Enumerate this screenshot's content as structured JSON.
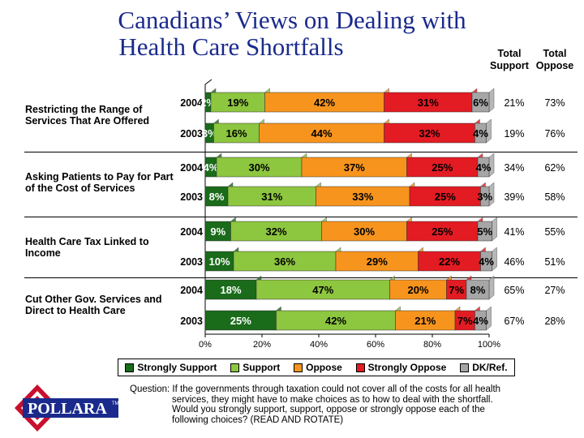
{
  "page": {
    "title_line1": "Canadians’ Views on Dealing with",
    "title_line2": "Health Care Shortfalls",
    "total_support_label_1": "Total",
    "total_support_label_2": "Support",
    "total_oppose_label_1": "Total",
    "total_oppose_label_2": "Oppose",
    "question_lead": "Question: If the governments through taxation could not cover all of the costs for all health",
    "question_rest": "services, they might have to make choices as to how to deal with the shortfall. Would you strongly support, support, oppose or strongly oppose each of the following choices? (READ AND ROTATE)",
    "logo_text": "POLLARA",
    "logo_tm": "TM"
  },
  "chart_data": {
    "type": "bar",
    "orientation": "horizontal",
    "stacked": true,
    "xlim": [
      0,
      100
    ],
    "xticks": [
      "0%",
      "20%",
      "40%",
      "60%",
      "80%",
      "100%"
    ],
    "legend_position": "bottom",
    "segments": [
      {
        "name": "Strongly Support",
        "color": "#1a6b1a"
      },
      {
        "name": "Support",
        "color": "#8dc63f"
      },
      {
        "name": "Oppose",
        "color": "#f7941d"
      },
      {
        "name": "Strongly Oppose",
        "color": "#e31b23"
      },
      {
        "name": "DK/Ref.",
        "color": "#a6a6a6"
      }
    ],
    "groups": [
      {
        "label": "Restricting the Range of Services That Are Offered",
        "rows": [
          {
            "year": "2004",
            "values": [
              2,
              19,
              42,
              31,
              6
            ],
            "labels": [
              "2%",
              "19%",
              "42%",
              "31%",
              "6%"
            ],
            "total_support": "21%",
            "total_oppose": "73%"
          },
          {
            "year": "2003",
            "values": [
              3,
              16,
              44,
              32,
              4
            ],
            "labels": [
              "3%",
              "16%",
              "44%",
              "32%",
              "4%"
            ],
            "total_support": "19%",
            "total_oppose": "76%"
          }
        ]
      },
      {
        "label": "Asking Patients to Pay for Part of the Cost of Services",
        "rows": [
          {
            "year": "2004",
            "values": [
              4,
              30,
              37,
              25,
              4
            ],
            "labels": [
              "4%",
              "30%",
              "37%",
              "25%",
              "4%"
            ],
            "total_support": "34%",
            "total_oppose": "62%"
          },
          {
            "year": "2003",
            "values": [
              8,
              31,
              33,
              25,
              3
            ],
            "labels": [
              "8%",
              "31%",
              "33%",
              "25%",
              "3%"
            ],
            "total_support": "39%",
            "total_oppose": "58%"
          }
        ]
      },
      {
        "label": "Health Care Tax Linked to Income",
        "rows": [
          {
            "year": "2004",
            "values": [
              9,
              32,
              30,
              25,
              5
            ],
            "labels": [
              "9%",
              "32%",
              "30%",
              "25%",
              "5%"
            ],
            "total_support": "41%",
            "total_oppose": "55%"
          },
          {
            "year": "2003",
            "values": [
              10,
              36,
              29,
              22,
              4
            ],
            "labels": [
              "10%",
              "36%",
              "29%",
              "22%",
              "4%"
            ],
            "total_support": "46%",
            "total_oppose": "51%"
          }
        ]
      },
      {
        "label": "Cut Other Gov. Services and Direct to Health Care",
        "rows": [
          {
            "year": "2004",
            "values": [
              18,
              47,
              20,
              7,
              8
            ],
            "labels": [
              "18%",
              "47%",
              "20%",
              "7%",
              "8%"
            ],
            "total_support": "65%",
            "total_oppose": "27%"
          },
          {
            "year": "2003",
            "values": [
              25,
              42,
              21,
              7,
              4
            ],
            "labels": [
              "25%",
              "42%",
              "21%",
              "7%",
              "4%"
            ],
            "total_support": "67%",
            "total_oppose": "28%"
          }
        ]
      }
    ]
  }
}
